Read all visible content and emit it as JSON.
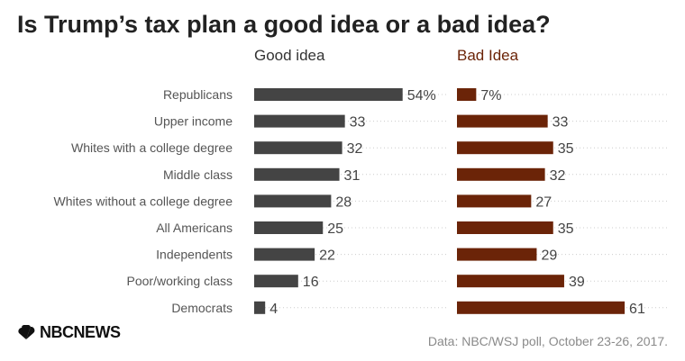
{
  "chart_data": {
    "type": "bar",
    "orientation": "horizontal",
    "title": "Is Trump’s tax plan a good idea or a bad idea?",
    "categories": [
      "Republicans",
      "Upper income",
      "Whites with a college degree",
      "Middle class",
      "Whites without a college degree",
      "All Americans",
      "Independents",
      "Poor/working class",
      "Democrats"
    ],
    "series": [
      {
        "name": "Good idea",
        "color": "#444444",
        "values": [
          54,
          33,
          32,
          31,
          28,
          25,
          22,
          16,
          4
        ],
        "labels": [
          "54%",
          "33",
          "32",
          "31",
          "28",
          "25",
          "22",
          "16",
          "4"
        ]
      },
      {
        "name": "Bad Idea",
        "color": "#6b2408",
        "values": [
          7,
          33,
          35,
          32,
          27,
          35,
          29,
          39,
          61
        ],
        "labels": [
          "7%",
          "33",
          "35",
          "32",
          "27",
          "35",
          "29",
          "39",
          "61"
        ]
      }
    ],
    "layout_style": "side-by-side panels",
    "grid": "horizontal dotted row lines",
    "xlabel": "",
    "ylabel": ""
  },
  "footer": {
    "logo_text": "NBCNEWS",
    "source": "Data: NBC/WSJ poll, October 23-26, 2017."
  }
}
